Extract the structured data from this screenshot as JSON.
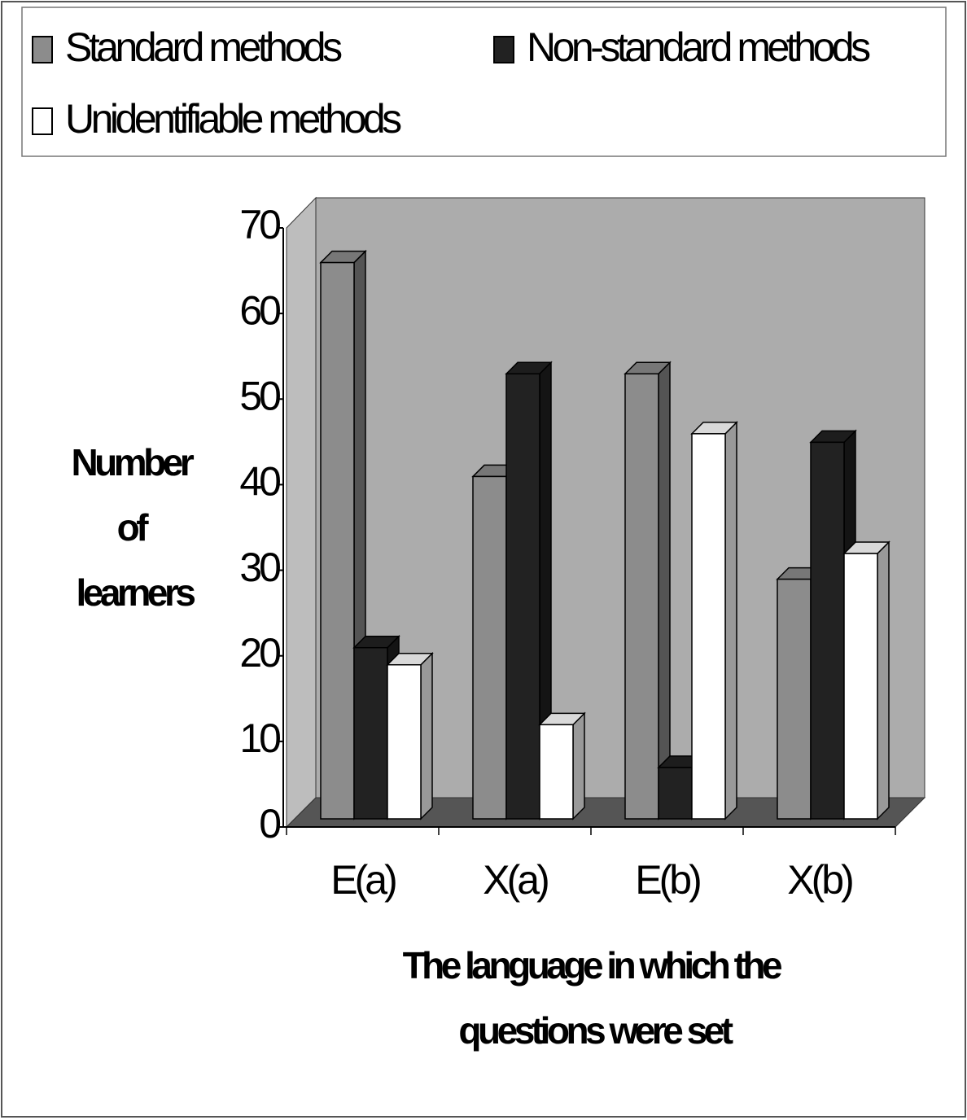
{
  "chart_data": {
    "type": "bar3d",
    "categories": [
      "E(a)",
      "X(a)",
      "E(b)",
      "X(b)"
    ],
    "series": [
      {
        "name": "Standard methods",
        "color": "#8c8c8c",
        "values": [
          65,
          40,
          52,
          28
        ]
      },
      {
        "name": "Non-standard methods",
        "color": "#222222",
        "values": [
          20,
          52,
          6,
          44
        ]
      },
      {
        "name": "Unidentifiable methods",
        "color": "#ffffff",
        "values": [
          18,
          11,
          45,
          31
        ]
      }
    ],
    "y_label": "Number of learners",
    "x_label": "The language in which the questions were set",
    "ylim": [
      0,
      70
    ],
    "yticks": [
      0,
      10,
      20,
      30,
      40,
      50,
      60,
      70
    ],
    "legend": "top"
  }
}
